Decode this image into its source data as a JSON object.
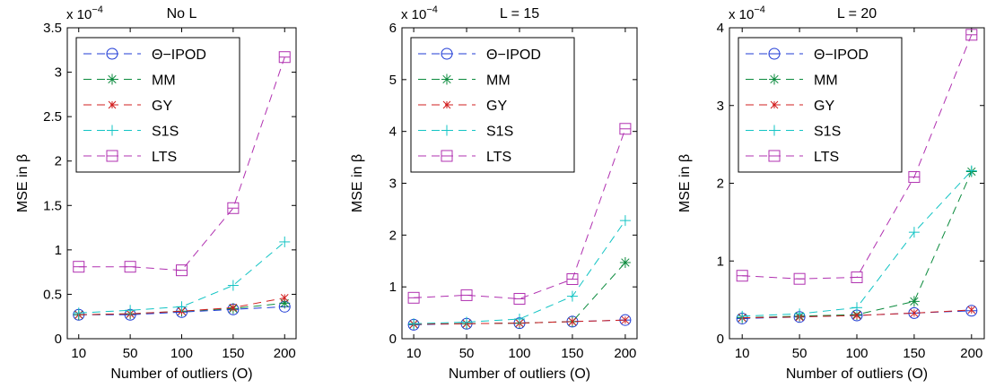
{
  "chart_data": [
    {
      "type": "line",
      "title": "No L",
      "exponent_label": "x 10",
      "exponent_power": "−4",
      "xlabel": "Number of outliers (O)",
      "ylabel": "MSE in β",
      "categories": [
        "10",
        "50",
        "100",
        "150",
        "200"
      ],
      "ylim": [
        0,
        3.5
      ],
      "yticks": [
        "0",
        "0.5",
        "1",
        "1.5",
        "2",
        "2.5",
        "3",
        "3.5"
      ],
      "series": [
        {
          "name": "Θ−IPOD",
          "values": [
            0.27,
            0.27,
            0.3,
            0.33,
            0.36
          ]
        },
        {
          "name": "MM",
          "values": [
            0.27,
            0.28,
            0.31,
            0.34,
            0.4
          ]
        },
        {
          "name": "GY",
          "values": [
            0.27,
            0.28,
            0.31,
            0.35,
            0.46
          ]
        },
        {
          "name": "S1S",
          "values": [
            0.29,
            0.32,
            0.36,
            0.6,
            1.09
          ]
        },
        {
          "name": "LTS",
          "values": [
            0.81,
            0.81,
            0.77,
            1.47,
            3.17
          ]
        }
      ]
    },
    {
      "type": "line",
      "title": "L = 15",
      "exponent_label": "x 10",
      "exponent_power": "−4",
      "xlabel": "Number of outliers (O)",
      "ylabel": "MSE in β",
      "categories": [
        "10",
        "50",
        "100",
        "150",
        "200"
      ],
      "ylim": [
        0,
        6
      ],
      "yticks": [
        "0",
        "1",
        "2",
        "3",
        "4",
        "5",
        "6"
      ],
      "series": [
        {
          "name": "Θ−IPOD",
          "values": [
            0.27,
            0.29,
            0.3,
            0.33,
            0.36
          ]
        },
        {
          "name": "MM",
          "values": [
            0.28,
            0.29,
            0.3,
            0.33,
            1.47
          ]
        },
        {
          "name": "GY",
          "values": [
            0.28,
            0.29,
            0.3,
            0.33,
            0.36
          ]
        },
        {
          "name": "S1S",
          "values": [
            0.29,
            0.32,
            0.38,
            0.82,
            2.28
          ]
        },
        {
          "name": "LTS",
          "values": [
            0.79,
            0.84,
            0.77,
            1.15,
            4.05
          ]
        }
      ]
    },
    {
      "type": "line",
      "title": "L = 20",
      "exponent_label": "x 10",
      "exponent_power": "−4",
      "xlabel": "Number of outliers (O)",
      "ylabel": "MSE in β",
      "categories": [
        "10",
        "50",
        "100",
        "150",
        "200"
      ],
      "ylim": [
        0,
        4
      ],
      "yticks": [
        "0",
        "1",
        "2",
        "3",
        "4"
      ],
      "series": [
        {
          "name": "Θ−IPOD",
          "values": [
            0.26,
            0.28,
            0.3,
            0.33,
            0.36
          ]
        },
        {
          "name": "MM",
          "values": [
            0.27,
            0.29,
            0.31,
            0.48,
            2.15
          ]
        },
        {
          "name": "GY",
          "values": [
            0.27,
            0.28,
            0.3,
            0.33,
            0.37
          ]
        },
        {
          "name": "S1S",
          "values": [
            0.29,
            0.32,
            0.4,
            1.37,
            2.16
          ]
        },
        {
          "name": "LTS",
          "values": [
            0.81,
            0.77,
            0.79,
            2.08,
            3.91
          ]
        }
      ]
    }
  ],
  "styles": {
    "series_colors": [
      "#1f3bd6",
      "#0a8a3c",
      "#d21f1f",
      "#12c4c4",
      "#b030b0"
    ],
    "series_markers": [
      "circle-cross",
      "asterisk",
      "x-star",
      "plus",
      "square"
    ]
  }
}
